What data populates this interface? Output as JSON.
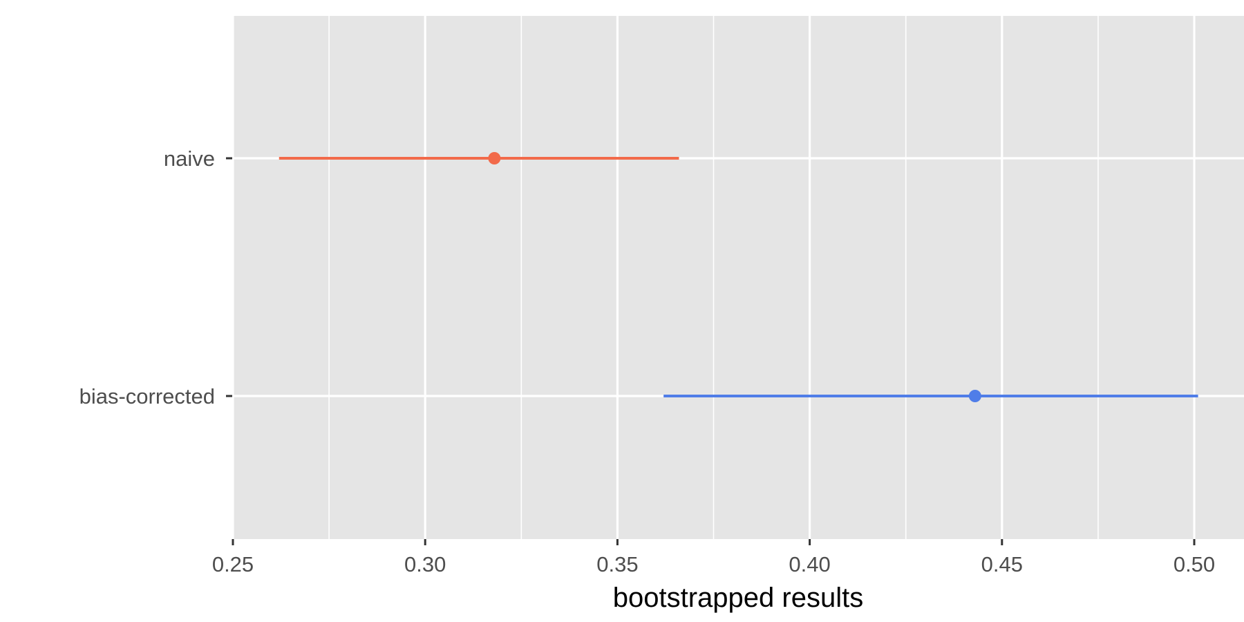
{
  "chart_data": {
    "type": "interval",
    "xlabel": "bootstrapped results",
    "ylabel": "",
    "xlim": [
      0.25,
      0.515
    ],
    "xticks": [
      0.25,
      0.3,
      0.35,
      0.4,
      0.45,
      0.5
    ],
    "xtick_labels": [
      "0.25",
      "0.30",
      "0.35",
      "0.40",
      "0.45",
      "0.50"
    ],
    "categories": [
      "naive",
      "bias-corrected"
    ],
    "points": [
      {
        "category": "naive",
        "estimate": 0.318,
        "lower": 0.262,
        "upper": 0.366,
        "color": "#f26a4a"
      },
      {
        "category": "bias-corrected",
        "estimate": 0.443,
        "lower": 0.362,
        "upper": 0.501,
        "color": "#4f7de8"
      }
    ],
    "background_color": "#e5e5e5",
    "grid": true,
    "legend": false
  }
}
